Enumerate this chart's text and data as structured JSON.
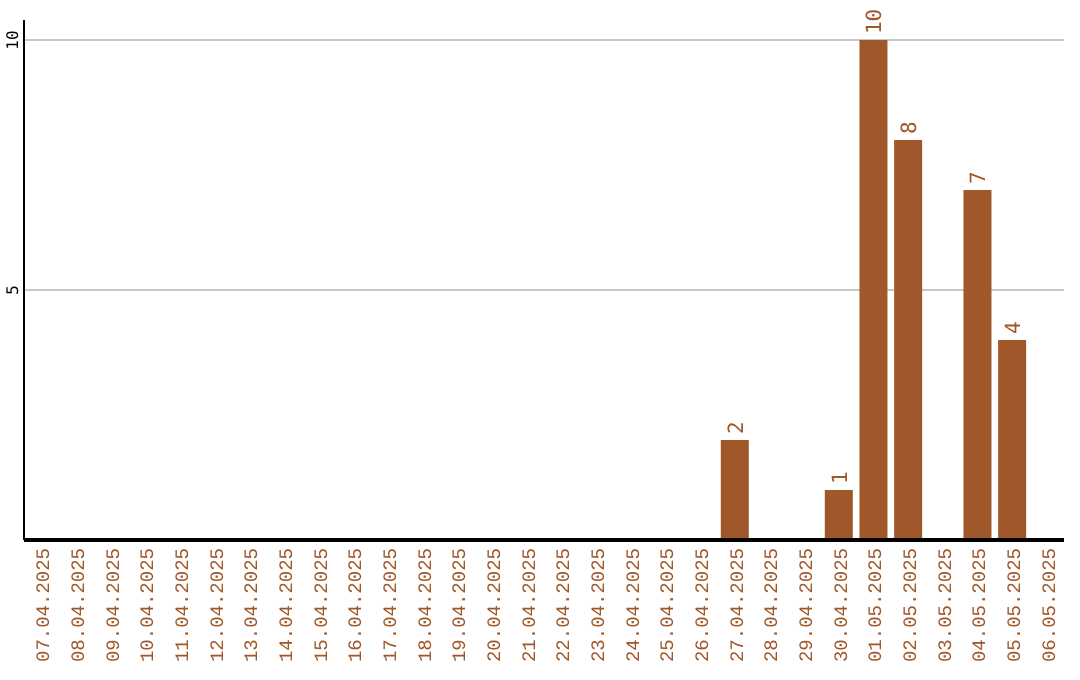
{
  "chart_data": {
    "type": "bar",
    "categories": [
      "07.04.2025",
      "08.04.2025",
      "09.04.2025",
      "10.04.2025",
      "11.04.2025",
      "12.04.2025",
      "13.04.2025",
      "14.04.2025",
      "15.04.2025",
      "16.04.2025",
      "17.04.2025",
      "18.04.2025",
      "19.04.2025",
      "20.04.2025",
      "21.04.2025",
      "22.04.2025",
      "23.04.2025",
      "24.04.2025",
      "25.04.2025",
      "26.04.2025",
      "27.04.2025",
      "28.04.2025",
      "29.04.2025",
      "30.04.2025",
      "01.05.2025",
      "02.05.2025",
      "03.05.2025",
      "04.05.2025",
      "05.05.2025",
      "06.05.2025"
    ],
    "values": [
      0,
      0,
      0,
      0,
      0,
      0,
      0,
      0,
      0,
      0,
      0,
      0,
      0,
      0,
      0,
      0,
      0,
      0,
      0,
      0,
      2,
      0,
      0,
      1,
      10,
      8,
      0,
      7,
      4,
      0
    ],
    "value_labels": [
      null,
      null,
      null,
      null,
      null,
      null,
      null,
      null,
      null,
      null,
      null,
      null,
      null,
      null,
      null,
      null,
      null,
      null,
      null,
      null,
      "2",
      null,
      null,
      "1",
      "10",
      "8",
      null,
      "7",
      "4",
      null
    ],
    "color": "#a0572a",
    "ylim": [
      0,
      10.4
    ],
    "yticks": [
      5,
      10
    ],
    "grid": "y"
  }
}
